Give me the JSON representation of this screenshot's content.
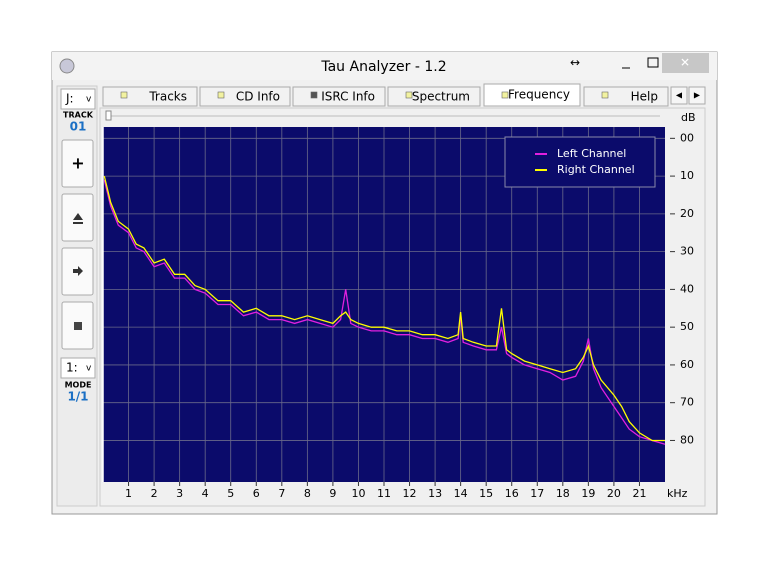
{
  "window": {
    "title": "Tau Analyzer - 1.2"
  },
  "tabs": [
    "Tracks",
    "CD Info",
    "ISRC Info",
    "Spectrum",
    "Frequency",
    "Help"
  ],
  "active_tab": 4,
  "sidebar": {
    "drive": "J:",
    "track_label": "TRACK",
    "track": "01",
    "mode_select": "1:",
    "mode_label": "MODE",
    "mode": "1/1"
  },
  "chart_data": {
    "type": "line",
    "xlabel": "kHz",
    "ylabel": "dB",
    "x": [
      0.05,
      0.3,
      0.6,
      1,
      1.3,
      1.6,
      2,
      2.4,
      2.8,
      3.2,
      3.6,
      4,
      4.5,
      5,
      5.5,
      6,
      6.5,
      7,
      7.5,
      8,
      8.5,
      9,
      9.3,
      9.5,
      9.7,
      10,
      10.5,
      11,
      11.5,
      12,
      12.5,
      13,
      13.5,
      13.9,
      14,
      14.1,
      14.5,
      15,
      15.4,
      15.6,
      15.8,
      16,
      16.5,
      17,
      17.5,
      18,
      18.5,
      18.8,
      19,
      19.2,
      19.5,
      20,
      20.3,
      20.6,
      21,
      21.5,
      22
    ],
    "series": [
      {
        "name": "Left Channel",
        "color": "#e020e0",
        "values": [
          11,
          18,
          23,
          25,
          29,
          30,
          34,
          33,
          37,
          37,
          40,
          41,
          44,
          44,
          47,
          46,
          48,
          48,
          49,
          48,
          49,
          50,
          48,
          40,
          49,
          50,
          51,
          51,
          52,
          52,
          53,
          53,
          54,
          53,
          47,
          54,
          55,
          56,
          56,
          50,
          57,
          58,
          60,
          61,
          62,
          64,
          63,
          59,
          53,
          61,
          66,
          71,
          74,
          77,
          79,
          80,
          81
        ]
      },
      {
        "name": "Right Channel",
        "color": "#ffff00",
        "values": [
          10,
          17,
          22,
          24,
          28,
          29,
          33,
          32,
          36,
          36,
          39,
          40,
          43,
          43,
          46,
          45,
          47,
          47,
          48,
          47,
          48,
          49,
          47,
          46,
          48,
          49,
          50,
          50,
          51,
          51,
          52,
          52,
          53,
          52,
          46,
          53,
          54,
          55,
          55,
          45,
          56,
          57,
          59,
          60,
          61,
          62,
          61,
          58,
          55,
          60,
          64,
          68,
          71,
          75,
          78,
          80,
          80
        ]
      }
    ],
    "xlim": [
      0,
      22
    ],
    "xticks": [
      1,
      2,
      3,
      4,
      5,
      6,
      7,
      8,
      9,
      10,
      11,
      12,
      13,
      14,
      15,
      16,
      17,
      18,
      19,
      20,
      21
    ],
    "ylim": [
      91,
      -3
    ],
    "yticks": [
      {
        "value": 0,
        "label": "00"
      },
      10,
      20,
      30,
      40,
      50,
      60,
      70,
      80
    ],
    "grid": true,
    "background": "#0b0b6b",
    "legend": "upper right"
  }
}
